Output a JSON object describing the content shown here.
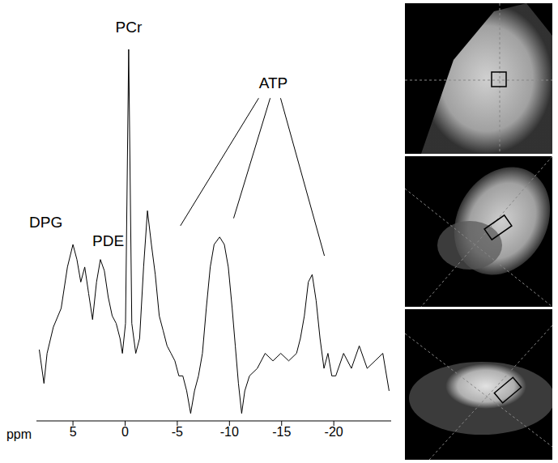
{
  "chart_data": {
    "type": "line",
    "xlabel": "ppm",
    "xlim": [
      8.5,
      -25.5
    ],
    "xticks": [
      5,
      0,
      -5,
      -10,
      -15,
      -20
    ],
    "ylim": [
      0,
      110
    ],
    "tick_labels": "x",
    "grid": false,
    "color": "#000000",
    "x": [
      8.23,
      7.78,
      7.48,
      6.88,
      6.13,
      5.53,
      5.0,
      4.62,
      4.25,
      3.87,
      3.5,
      3.12,
      2.74,
      2.37,
      1.99,
      1.62,
      1.24,
      0.86,
      0.49,
      0.26,
      -0.04,
      -0.34,
      -0.64,
      -1.02,
      -1.39,
      -1.77,
      -2.14,
      -2.52,
      -2.89,
      -3.27,
      -3.65,
      -4.02,
      -4.4,
      -4.77,
      -5.15,
      -5.53,
      -5.9,
      -6.28,
      -6.65,
      -7.03,
      -7.41,
      -7.78,
      -8.16,
      -8.53,
      -9.06,
      -9.51,
      -9.89,
      -10.26,
      -10.56,
      -10.86,
      -11.17,
      -11.47,
      -11.92,
      -12.67,
      -13.42,
      -14.17,
      -14.92,
      -15.68,
      -16.43,
      -16.8,
      -17.18,
      -17.56,
      -17.93,
      -18.31,
      -18.68,
      -19.06,
      -19.44,
      -19.81,
      -20.19,
      -20.94,
      -21.69,
      -22.44,
      -23.2,
      -23.95,
      -24.7,
      -25.3
    ],
    "values": [
      19,
      10,
      18,
      25,
      30,
      41,
      47,
      43,
      37,
      41,
      34,
      27,
      37,
      43,
      40,
      33,
      28,
      26,
      22,
      18,
      26,
      99,
      26,
      18,
      22,
      41,
      56,
      47,
      39,
      28,
      24,
      20,
      18,
      16,
      12,
      12,
      8,
      2,
      8,
      12,
      18,
      30,
      41,
      47,
      49,
      47,
      41,
      30,
      20,
      10,
      2,
      8,
      12,
      14,
      18,
      16,
      18,
      16,
      18,
      22,
      28,
      37,
      39,
      32,
      22,
      14,
      18,
      12,
      12,
      18,
      14,
      20,
      14,
      16,
      18,
      8
    ],
    "annotations": [
      {
        "text": "DPG",
        "x": 7.6,
        "y": 53
      },
      {
        "text": "PDE",
        "x": 1.62,
        "y": 48
      },
      {
        "text": "PCr",
        "x": -0.34,
        "y": 105
      },
      {
        "text": "ATP",
        "x": -14.2,
        "y": 90,
        "targets": [
          [
            -5.3,
            52
          ],
          [
            -10.4,
            54
          ],
          [
            -19.1,
            44
          ]
        ],
        "from": [
          [
            -12.8,
            86
          ],
          [
            -13.9,
            86
          ],
          [
            -14.9,
            86
          ]
        ]
      }
    ]
  }
}
